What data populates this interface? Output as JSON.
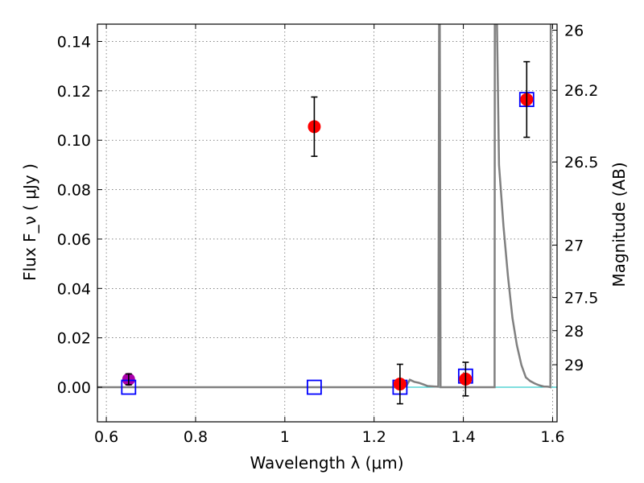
{
  "chart_data": {
    "type": "scatter",
    "xlabel": "Wavelength  λ (μm)",
    "ylabel": "Flux  F_ν  ( μJy )",
    "y2label": "Magnitude (AB)",
    "xlim": [
      0.58,
      1.61
    ],
    "ylim": [
      -0.014,
      0.147
    ],
    "x_ticks": [
      {
        "value": 0.6,
        "label": "0.6"
      },
      {
        "value": 0.8,
        "label": "0.8"
      },
      {
        "value": 1.0,
        "label": "1"
      },
      {
        "value": 1.2,
        "label": "1.2"
      },
      {
        "value": 1.4,
        "label": "1.4"
      },
      {
        "value": 1.6,
        "label": "1.6"
      }
    ],
    "y_ticks": [
      {
        "value": 0.0,
        "label": "0.00"
      },
      {
        "value": 0.02,
        "label": "0.02"
      },
      {
        "value": 0.04,
        "label": "0.04"
      },
      {
        "value": 0.06,
        "label": "0.06"
      },
      {
        "value": 0.08,
        "label": "0.08"
      },
      {
        "value": 0.1,
        "label": "0.10"
      },
      {
        "value": 0.12,
        "label": "0.12"
      },
      {
        "value": 0.14,
        "label": "0.14"
      }
    ],
    "mag_ticks": [
      {
        "value": 26,
        "label": "26"
      },
      {
        "value": 26.2,
        "label": "26.2"
      },
      {
        "value": 26.5,
        "label": "26.5"
      },
      {
        "value": 27,
        "label": "27"
      },
      {
        "value": 27.5,
        "label": "27.5"
      },
      {
        "value": 28,
        "label": "28"
      },
      {
        "value": 29,
        "label": "29"
      }
    ],
    "grid": true,
    "observed": {
      "color": "#ff0000",
      "points": [
        {
          "x": 1.066,
          "y": 0.1055,
          "err": 0.012
        },
        {
          "x": 1.258,
          "y": 0.0013,
          "err": 0.008
        },
        {
          "x": 1.405,
          "y": 0.0033,
          "err": 0.0068
        },
        {
          "x": 1.542,
          "y": 0.1165,
          "err": 0.0153
        }
      ]
    },
    "optical": {
      "color": "#aa00aa",
      "points": [
        {
          "x": 0.65,
          "y": 0.0032,
          "err": 0.0022
        }
      ]
    },
    "model_photometry": {
      "color": "#0000ff",
      "points": [
        {
          "x": 0.65,
          "y": 0.0
        },
        {
          "x": 1.066,
          "y": 0.0
        },
        {
          "x": 1.258,
          "y": 0.0
        },
        {
          "x": 1.405,
          "y": 0.0045
        },
        {
          "x": 1.542,
          "y": 0.1165
        }
      ]
    },
    "model_spectrum": {
      "color": "#808080",
      "points": [
        [
          0.58,
          0.0
        ],
        [
          1.26,
          0.0
        ],
        [
          1.272,
          0.0004
        ],
        [
          1.28,
          0.003
        ],
        [
          1.29,
          0.0022
        ],
        [
          1.3,
          0.0018
        ],
        [
          1.31,
          0.0012
        ],
        [
          1.32,
          0.0005
        ],
        [
          1.335,
          0.0003
        ],
        [
          1.344,
          0.0002
        ],
        [
          1.346,
          0.16
        ],
        [
          1.347,
          0.16
        ],
        [
          1.349,
          0.0
        ],
        [
          1.47,
          0.0
        ],
        [
          1.4705,
          0.16
        ],
        [
          1.475,
          0.15
        ],
        [
          1.48,
          0.09
        ],
        [
          1.49,
          0.065
        ],
        [
          1.5,
          0.045
        ],
        [
          1.51,
          0.028
        ],
        [
          1.52,
          0.017
        ],
        [
          1.53,
          0.009
        ],
        [
          1.54,
          0.004
        ],
        [
          1.55,
          0.0025
        ],
        [
          1.56,
          0.0015
        ],
        [
          1.57,
          0.0008
        ],
        [
          1.58,
          0.0003
        ],
        [
          1.59,
          0.0002
        ],
        [
          1.595,
          0.0
        ],
        [
          1.596,
          0.16
        ],
        [
          1.598,
          0.16
        ]
      ]
    },
    "baseline_color": "#00bfbf"
  }
}
